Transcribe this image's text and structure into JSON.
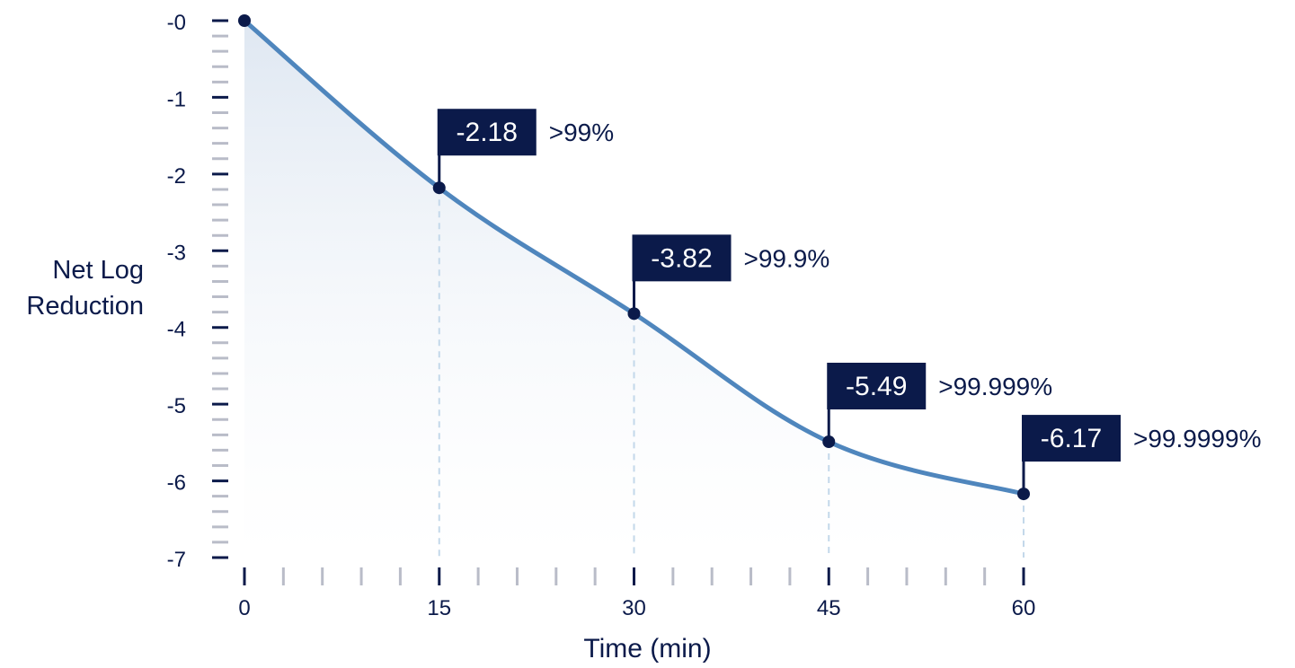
{
  "chart_data": {
    "type": "area",
    "title": "",
    "xlabel": "Time (min)",
    "ylabel": [
      "Net Log",
      "Reduction"
    ],
    "x_ticks": [
      "0",
      "15",
      "30",
      "45",
      "60"
    ],
    "y_ticks": [
      "-0",
      "-1",
      "-2",
      "-3",
      "-4",
      "-5",
      "-6",
      "-7"
    ],
    "xlim": [
      0,
      60
    ],
    "ylim": [
      -7,
      0
    ],
    "grid": false,
    "series": [
      {
        "x": [
          0,
          15,
          30,
          45,
          60
        ],
        "y": [
          0,
          -2.18,
          -3.82,
          -5.49,
          -6.17
        ]
      }
    ],
    "annotations": [
      {
        "x": 15,
        "y": -2.18,
        "value_label": "-2.18",
        "percent_label": ">99%"
      },
      {
        "x": 30,
        "y": -3.82,
        "value_label": "-3.82",
        "percent_label": ">99.9%"
      },
      {
        "x": 45,
        "y": -5.49,
        "value_label": "-5.49",
        "percent_label": ">99.999%"
      },
      {
        "x": 60,
        "y": -6.17,
        "value_label": "-6.17",
        "percent_label": ">99.9999%"
      }
    ],
    "colors": {
      "line": "#4f86bd",
      "marker": "#0b1a4a",
      "label_box": "#0b1a4a",
      "label_text": "#ffffff",
      "axis": "#0b1a4a",
      "minor_tick": "#b9bcc8",
      "dashed_guide": "#c3d8ea",
      "fill_top": "#dde6f1"
    }
  }
}
